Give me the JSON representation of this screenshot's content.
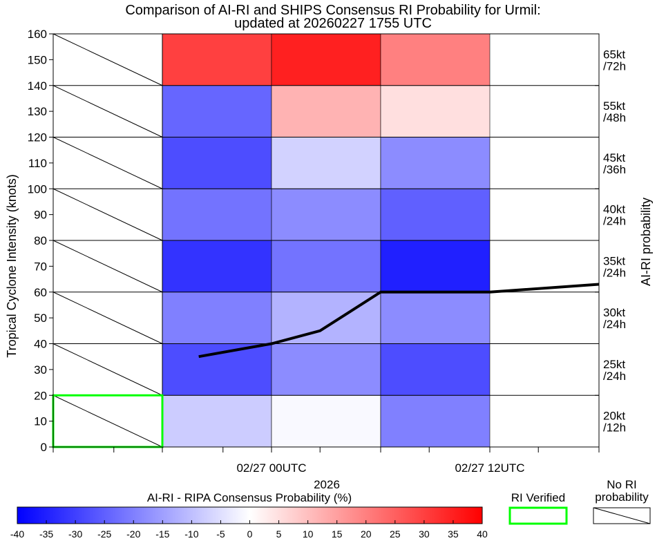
{
  "chart_data": {
    "type": "heatmap",
    "title_line1": "Comparison of AI-RI and SHIPS Consensus RI Probability for Urmil:",
    "title_line2": "updated at 20260227 1755 UTC",
    "ylabel": "Tropical Cyclone Intensity (knots)",
    "right_ylabel": "AI-RI probability",
    "x_year_label": "2026",
    "ylim": [
      0,
      160
    ],
    "y_ticks": [
      0,
      10,
      20,
      30,
      40,
      50,
      60,
      70,
      80,
      90,
      100,
      110,
      120,
      130,
      140,
      150,
      160
    ],
    "x_range_hours": [
      -18,
      27
    ],
    "x_minor_tick_hours": [
      -18,
      -13,
      -9,
      -4,
      0,
      4,
      9,
      13,
      18,
      22,
      27
    ],
    "x_tick_labels": [
      {
        "hour": 0,
        "label": "02/27 00UTC"
      },
      {
        "hour": 18,
        "label": "02/27 12UTC"
      }
    ],
    "columns_hours": [
      [
        -9,
        0
      ],
      [
        0,
        9
      ],
      [
        9,
        18
      ]
    ],
    "row_bands": [
      [
        0,
        20
      ],
      [
        20,
        40
      ],
      [
        40,
        60
      ],
      [
        60,
        80
      ],
      [
        80,
        100
      ],
      [
        100,
        120
      ],
      [
        120,
        140
      ],
      [
        140,
        160
      ]
    ],
    "row_labels": [
      [
        "20kt",
        "/12h"
      ],
      [
        "25kt",
        "/24h"
      ],
      [
        "30kt",
        "/24h"
      ],
      [
        "35kt",
        "/24h"
      ],
      [
        "40kt",
        "/24h"
      ],
      [
        "45kt",
        "/36h"
      ],
      [
        "55kt",
        "/48h"
      ],
      [
        "65kt",
        "/72h"
      ]
    ],
    "values_by_row": [
      [
        -8,
        -1,
        -20
      ],
      [
        -28,
        -18,
        -28
      ],
      [
        -20,
        -12,
        -18
      ],
      [
        -32,
        -22,
        -35
      ],
      [
        -22,
        -18,
        -25
      ],
      [
        -28,
        -7,
        -18
      ],
      [
        -24,
        12,
        5
      ],
      [
        30,
        35,
        20
      ]
    ],
    "intensity_track": {
      "x_hours": [
        -6,
        0,
        4,
        9,
        18,
        27
      ],
      "knots": [
        35,
        40,
        45,
        60,
        60,
        63
      ]
    },
    "verified_cell": {
      "hours": [
        -18,
        -9
      ],
      "knots": [
        0,
        20
      ]
    },
    "colorbar": {
      "label": "AI-RI - RIPA Consensus Probability (%)",
      "min": -40,
      "max": 40,
      "ticks": [
        -40,
        -35,
        -30,
        -25,
        -20,
        -15,
        -10,
        -5,
        0,
        5,
        10,
        15,
        20,
        25,
        30,
        35,
        40
      ],
      "low_color": "#0000ff",
      "mid_color": "#ffffff",
      "high_color": "#ff0000"
    },
    "legend": {
      "verified_label": "RI Verified",
      "verified_color": "#00ff00",
      "no_ri_line1": "No RI",
      "no_ri_line2": "probability"
    }
  }
}
